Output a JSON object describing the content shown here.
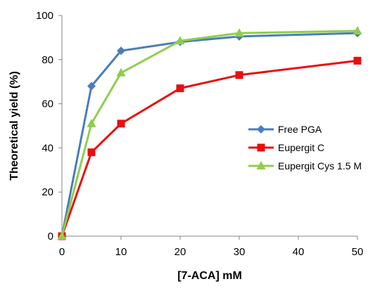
{
  "chart_data": {
    "type": "line",
    "title": "",
    "xlabel": "[7-ACA] mM",
    "ylabel": "Theoretical yield (%)",
    "xlim": [
      0,
      50
    ],
    "ylim": [
      0,
      100
    ],
    "xticks": [
      0,
      10,
      20,
      30,
      40,
      50
    ],
    "yticks": [
      0,
      20,
      40,
      60,
      80,
      100
    ],
    "grid": false,
    "legend_position": "right",
    "series": [
      {
        "name": "Free PGA",
        "color": "#4a7ebb",
        "marker": "diamond",
        "x": [
          0,
          5,
          10,
          20,
          30,
          50
        ],
        "y": [
          0,
          68,
          84,
          88,
          90.5,
          92
        ]
      },
      {
        "name": "Eupergit C",
        "color": "#e8100e",
        "marker": "square",
        "x": [
          0,
          5,
          10,
          20,
          30,
          50
        ],
        "y": [
          0,
          38,
          51,
          67,
          73,
          79.5
        ]
      },
      {
        "name": "Eupergit Cys 1.5 M",
        "color": "#8fce4c",
        "marker": "triangle",
        "x": [
          0,
          5,
          10,
          20,
          30,
          50
        ],
        "y": [
          0,
          51,
          74,
          88.5,
          92,
          93
        ]
      }
    ]
  }
}
